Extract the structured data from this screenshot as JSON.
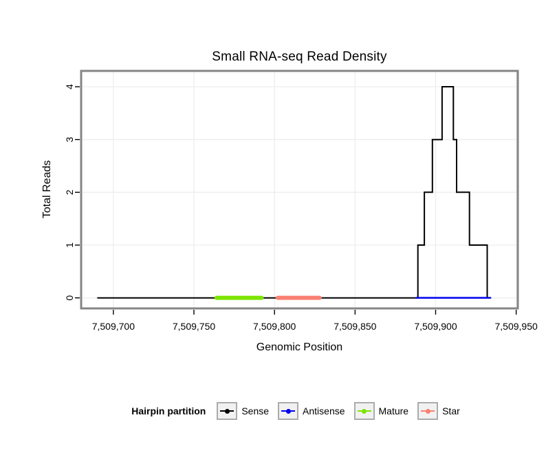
{
  "title": "Small RNA-seq Read Density",
  "chart_data": {
    "type": "line",
    "title": "Small RNA-seq Read Density",
    "xlabel": "Genomic Position",
    "ylabel": "Total Reads",
    "xlim": [
      7509680,
      7509951
    ],
    "ylim": [
      -0.2,
      4.3
    ],
    "x_ticks": [
      7509700,
      7509750,
      7509800,
      7509850,
      7509900,
      7509950
    ],
    "x_tick_labels": [
      "7,509,700",
      "7,509,750",
      "7,509,800",
      "7,509,850",
      "7,509,900",
      "7,509,950"
    ],
    "y_ticks": [
      0,
      1,
      2,
      3,
      4
    ],
    "y_tick_labels": [
      "0",
      "1",
      "2",
      "3",
      "4"
    ],
    "grid": true,
    "series": [
      {
        "name": "Sense",
        "type": "step-line",
        "color": "#000000",
        "width": 2,
        "points": [
          [
            7509690,
            0
          ],
          [
            7509889,
            0
          ],
          [
            7509889,
            1
          ],
          [
            7509893,
            1
          ],
          [
            7509893,
            2
          ],
          [
            7509898,
            2
          ],
          [
            7509898,
            3
          ],
          [
            7509904,
            3
          ],
          [
            7509904,
            4
          ],
          [
            7509911,
            4
          ],
          [
            7509911,
            3
          ],
          [
            7509913,
            3
          ],
          [
            7509913,
            2
          ],
          [
            7509921,
            2
          ],
          [
            7509921,
            1
          ],
          [
            7509932,
            1
          ],
          [
            7509932,
            0
          ]
        ]
      },
      {
        "name": "Antisense",
        "type": "segment",
        "color": "#0000EE",
        "width": 2.5,
        "y": 0,
        "x0": 7509888,
        "x1": 7509934
      },
      {
        "name": "Mature",
        "type": "segment",
        "color": "#7CE500",
        "width": 6,
        "y": 0,
        "x0": 7509764,
        "x1": 7509792
      },
      {
        "name": "Star",
        "type": "segment",
        "color": "#FA8072",
        "width": 6,
        "y": 0,
        "x0": 7509802,
        "x1": 7509828
      }
    ],
    "legend": {
      "title": "Hairpin partition",
      "position": "bottom",
      "items": [
        {
          "label": "Sense",
          "color": "#000000"
        },
        {
          "label": "Antisense",
          "color": "#0000EE"
        },
        {
          "label": "Mature",
          "color": "#7CE500"
        },
        {
          "label": "Star",
          "color": "#FA8072"
        }
      ]
    }
  },
  "colors": {
    "panel_border": "#858585",
    "grid": "#EDEDED",
    "tick": "#000000",
    "legend_key_bg": "#F1F1F1",
    "legend_key_border": "#ABABAB"
  }
}
